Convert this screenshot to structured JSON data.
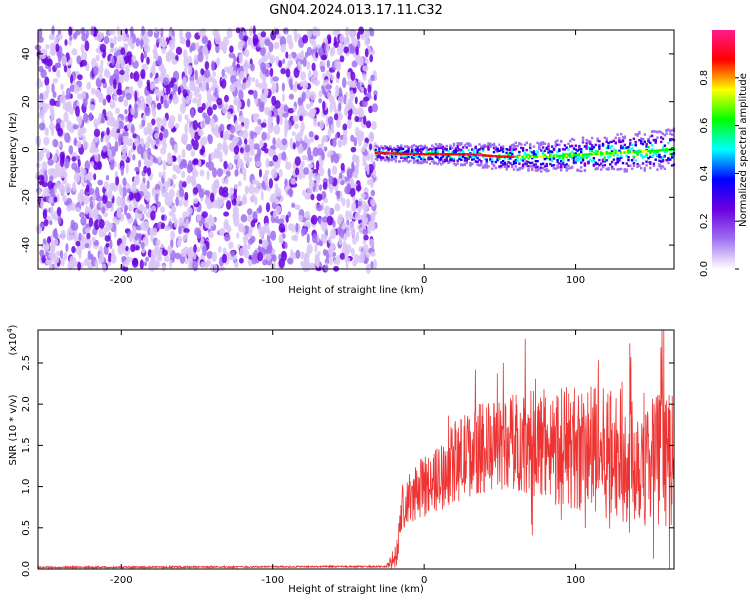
{
  "title": "GN04.2024.013.17.11.C32",
  "chart_data": [
    {
      "type": "heatmap",
      "xlabel": "Height of straight line (km)",
      "ylabel": "Frequency (Hz)",
      "xlim": [
        -255,
        165
      ],
      "ylim": [
        -50,
        50
      ],
      "xticks": [
        -200,
        -100,
        0,
        100
      ],
      "yticks": [
        -40,
        -20,
        0,
        20,
        40
      ],
      "noise_region_x": [
        -255,
        -32
      ],
      "signal_region_x": [
        -32,
        165
      ],
      "signal_frequency_hz": [
        {
          "x": -30,
          "f": -1.5
        },
        {
          "x": 0,
          "f": -2
        },
        {
          "x": 30,
          "f": -2
        },
        {
          "x": 50,
          "f": -3
        },
        {
          "x": 80,
          "f": -3
        },
        {
          "x": 110,
          "f": -2
        },
        {
          "x": 140,
          "f": -1
        },
        {
          "x": 165,
          "f": 0
        }
      ],
      "colorbar": {
        "label": "Normalized spectral amplitude",
        "range": [
          0,
          1
        ],
        "ticks": [
          "0.0",
          "0.2",
          "0.4",
          "0.6",
          "0.8"
        ],
        "colors": [
          "#ffffff",
          "#a070f0",
          "#6a00e0",
          "#0000ff",
          "#00ffff",
          "#00ff00",
          "#ffff00",
          "#ff0000",
          "#ff1a8c"
        ]
      }
    },
    {
      "type": "line",
      "xlabel": "Height of straight line (km)",
      "ylabel": "SNR (10 * v/v)",
      "y_scale_label": "(x10",
      "y_scale_exp": "4",
      "y_scale_close": ")",
      "xlim": [
        -255,
        165
      ],
      "ylim": [
        0,
        2.9
      ],
      "xticks": [
        -200,
        -100,
        0,
        100
      ],
      "yticks": [
        "0.0",
        "0.5",
        "1.0",
        "1.5",
        "2.0",
        "2.5"
      ],
      "series_color": "#ee3333",
      "envelope": [
        {
          "x": -255,
          "base": 0.02,
          "amp": 0.01
        },
        {
          "x": -25,
          "base": 0.03,
          "amp": 0.01
        },
        {
          "x": -18,
          "base": 0.15,
          "amp": 0.2
        },
        {
          "x": -15,
          "base": 0.7,
          "amp": 0.3
        },
        {
          "x": -5,
          "base": 0.95,
          "amp": 0.35
        },
        {
          "x": 10,
          "base": 1.1,
          "amp": 0.4
        },
        {
          "x": 20,
          "base": 1.3,
          "amp": 0.5
        },
        {
          "x": 35,
          "base": 1.45,
          "amp": 0.55
        },
        {
          "x": 60,
          "base": 1.55,
          "amp": 0.6
        },
        {
          "x": 90,
          "base": 1.5,
          "amp": 0.75
        },
        {
          "x": 120,
          "base": 1.4,
          "amp": 0.8
        },
        {
          "x": 150,
          "base": 1.35,
          "amp": 0.85
        },
        {
          "x": 165,
          "base": 1.3,
          "amp": 0.8
        }
      ]
    }
  ]
}
